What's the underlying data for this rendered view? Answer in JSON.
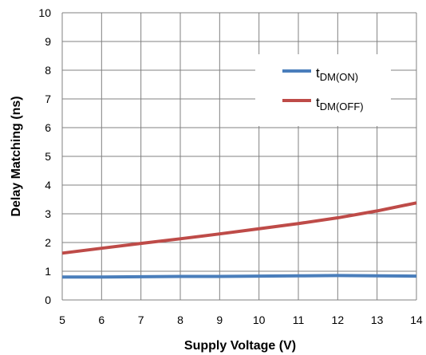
{
  "colors": {
    "background": "#ffffff",
    "grid": "#808080",
    "series_on": "#4a7ebb",
    "series_off": "#be4b48"
  },
  "chart_data": {
    "type": "line",
    "xlabel": "Supply Voltage (V)",
    "ylabel": "Delay Matching (ns)",
    "xlim": [
      5,
      14
    ],
    "ylim": [
      0,
      10
    ],
    "x_ticks": [
      "5",
      "6",
      "7",
      "8",
      "9",
      "10",
      "11",
      "12",
      "13",
      "14"
    ],
    "y_ticks": [
      "0",
      "1",
      "2",
      "3",
      "4",
      "5",
      "6",
      "7",
      "8",
      "9",
      "10"
    ],
    "grid": true,
    "legend_position": "top-right",
    "x": [
      5,
      6,
      7,
      8,
      9,
      10,
      11,
      12,
      13,
      14
    ],
    "series": [
      {
        "name_main": "t",
        "name_sub": "DM(ON)",
        "color": "#4a7ebb",
        "values": [
          0.8,
          0.8,
          0.81,
          0.82,
          0.82,
          0.83,
          0.84,
          0.85,
          0.84,
          0.83
        ]
      },
      {
        "name_main": "t",
        "name_sub": "DM(OFF)",
        "color": "#be4b48",
        "values": [
          1.63,
          1.8,
          1.97,
          2.13,
          2.3,
          2.48,
          2.66,
          2.86,
          3.1,
          3.38
        ]
      }
    ]
  }
}
